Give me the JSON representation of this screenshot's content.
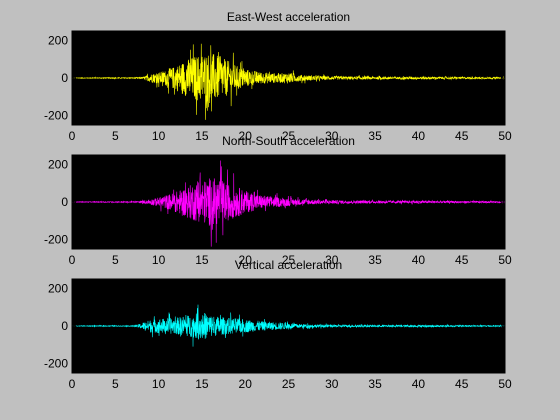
{
  "window": {
    "background": "#c0c0c0",
    "axes_background": "#000000"
  },
  "chart_data": [
    {
      "type": "line",
      "title": "East-West acceleration",
      "xlim": [
        0,
        50
      ],
      "ylim": [
        -250,
        250
      ],
      "xticks": [
        0,
        5,
        10,
        15,
        20,
        25,
        30,
        35,
        40,
        45,
        50
      ],
      "yticks": [
        -200,
        0,
        200
      ],
      "color": "#ffff00",
      "grid": false,
      "envelope": {
        "x": [
          0,
          8,
          8.5,
          9,
          10,
          11,
          12,
          13,
          14,
          15,
          16,
          17,
          18,
          19,
          20,
          21,
          22,
          23,
          24,
          25,
          26,
          27,
          28,
          29,
          30,
          32,
          34,
          36,
          38,
          40,
          42,
          44,
          46,
          48,
          50
        ],
        "amplitude": [
          3,
          5,
          20,
          40,
          55,
          80,
          120,
          170,
          210,
          240,
          250,
          210,
          170,
          120,
          90,
          70,
          55,
          50,
          45,
          55,
          35,
          28,
          22,
          20,
          18,
          15,
          14,
          13,
          12,
          14,
          12,
          10,
          9,
          8,
          6
        ]
      }
    },
    {
      "type": "line",
      "title": "North-South acceleration",
      "xlim": [
        0,
        50
      ],
      "ylim": [
        -250,
        250
      ],
      "xticks": [
        0,
        5,
        10,
        15,
        20,
        25,
        30,
        35,
        40,
        45,
        50
      ],
      "yticks": [
        -200,
        0,
        200
      ],
      "color": "#ff00ff",
      "grid": false,
      "envelope": {
        "x": [
          0,
          7,
          8,
          9,
          10,
          11,
          12,
          13,
          14,
          15,
          16,
          17,
          18,
          19,
          20,
          21,
          22,
          23,
          24,
          25,
          26,
          28,
          30,
          32,
          34,
          36,
          38,
          40,
          42,
          44,
          46,
          48,
          50
        ],
        "amplitude": [
          3,
          5,
          10,
          25,
          45,
          70,
          100,
          140,
          180,
          200,
          240,
          230,
          180,
          150,
          110,
          85,
          65,
          55,
          45,
          40,
          30,
          22,
          18,
          15,
          14,
          13,
          12,
          14,
          11,
          10,
          9,
          8,
          6
        ]
      }
    },
    {
      "type": "line",
      "title": "Vertical acceleration",
      "xlim": [
        0,
        50
      ],
      "ylim": [
        -250,
        250
      ],
      "xticks": [
        0,
        5,
        10,
        15,
        20,
        25,
        30,
        35,
        40,
        45,
        50
      ],
      "yticks": [
        -200,
        0,
        200
      ],
      "color": "#00ffff",
      "grid": false,
      "envelope": {
        "x": [
          0,
          7,
          7.5,
          8,
          9,
          10,
          11,
          12,
          13,
          14,
          15,
          16,
          17,
          18,
          19,
          20,
          21,
          22,
          23,
          24,
          25,
          26,
          28,
          30,
          32,
          34,
          36,
          38,
          40,
          42,
          44,
          46,
          48,
          50
        ],
        "amplitude": [
          3,
          4,
          10,
          30,
          60,
          70,
          75,
          80,
          100,
          110,
          140,
          110,
          90,
          80,
          75,
          65,
          55,
          45,
          40,
          35,
          30,
          22,
          15,
          12,
          10,
          9,
          8,
          8,
          9,
          8,
          7,
          6,
          6,
          5
        ]
      }
    }
  ]
}
